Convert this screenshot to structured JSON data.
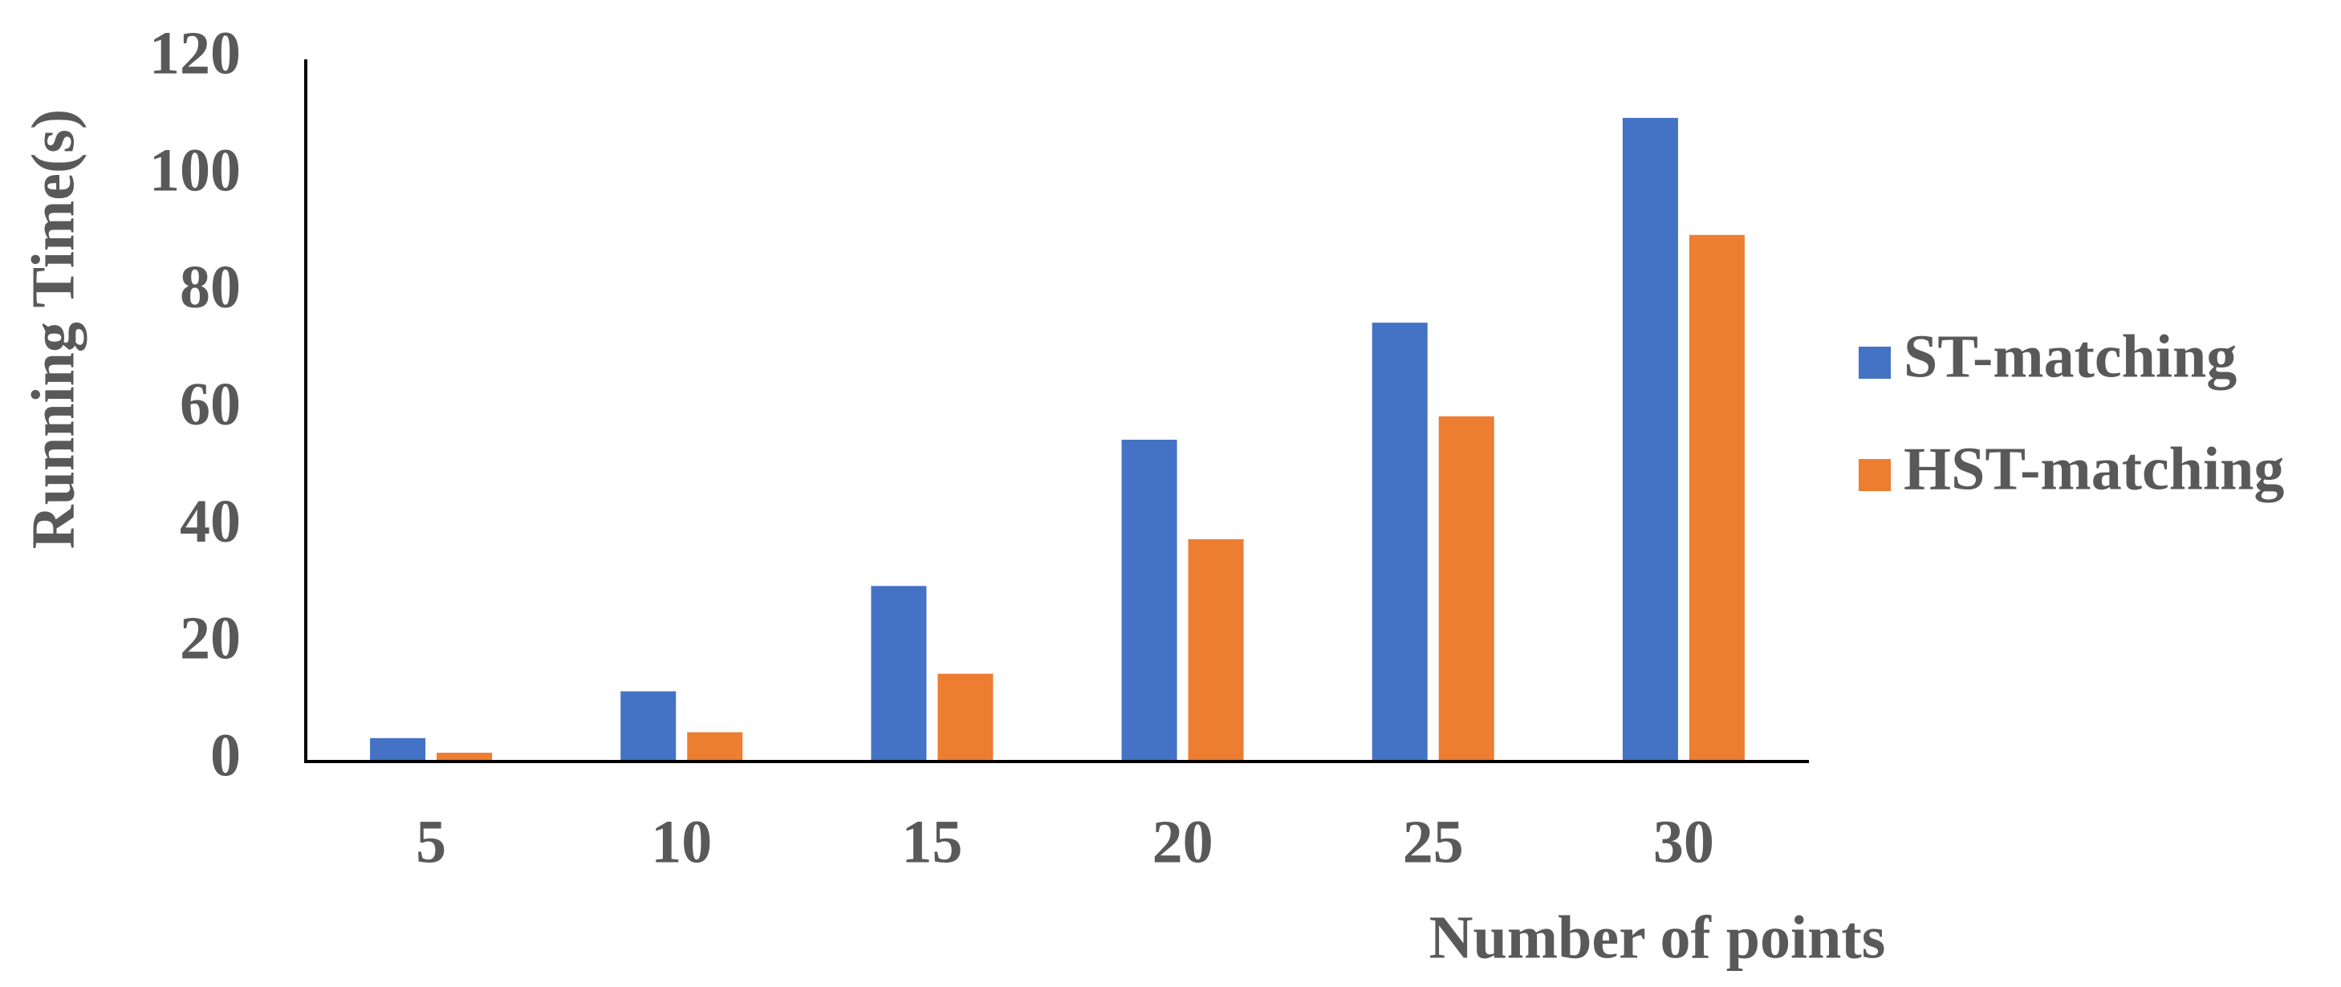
{
  "chart_data": {
    "type": "bar",
    "x_label": "Number of points",
    "y_label": "Running Time(s)",
    "categories": [
      "5",
      "10",
      "15",
      "20",
      "25",
      "30"
    ],
    "series": [
      {
        "name": "ST-matching",
        "color": "#4472c4",
        "values": [
          4,
          12,
          30,
          55,
          75,
          110
        ]
      },
      {
        "name": "HST-matching",
        "color": "#ed7d31",
        "values": [
          1.5,
          5,
          15,
          38,
          59,
          90
        ]
      }
    ],
    "ylim": [
      0,
      120
    ],
    "yticks": [
      0,
      20,
      40,
      60,
      80,
      100,
      120
    ],
    "grid": false,
    "legend": "right"
  }
}
